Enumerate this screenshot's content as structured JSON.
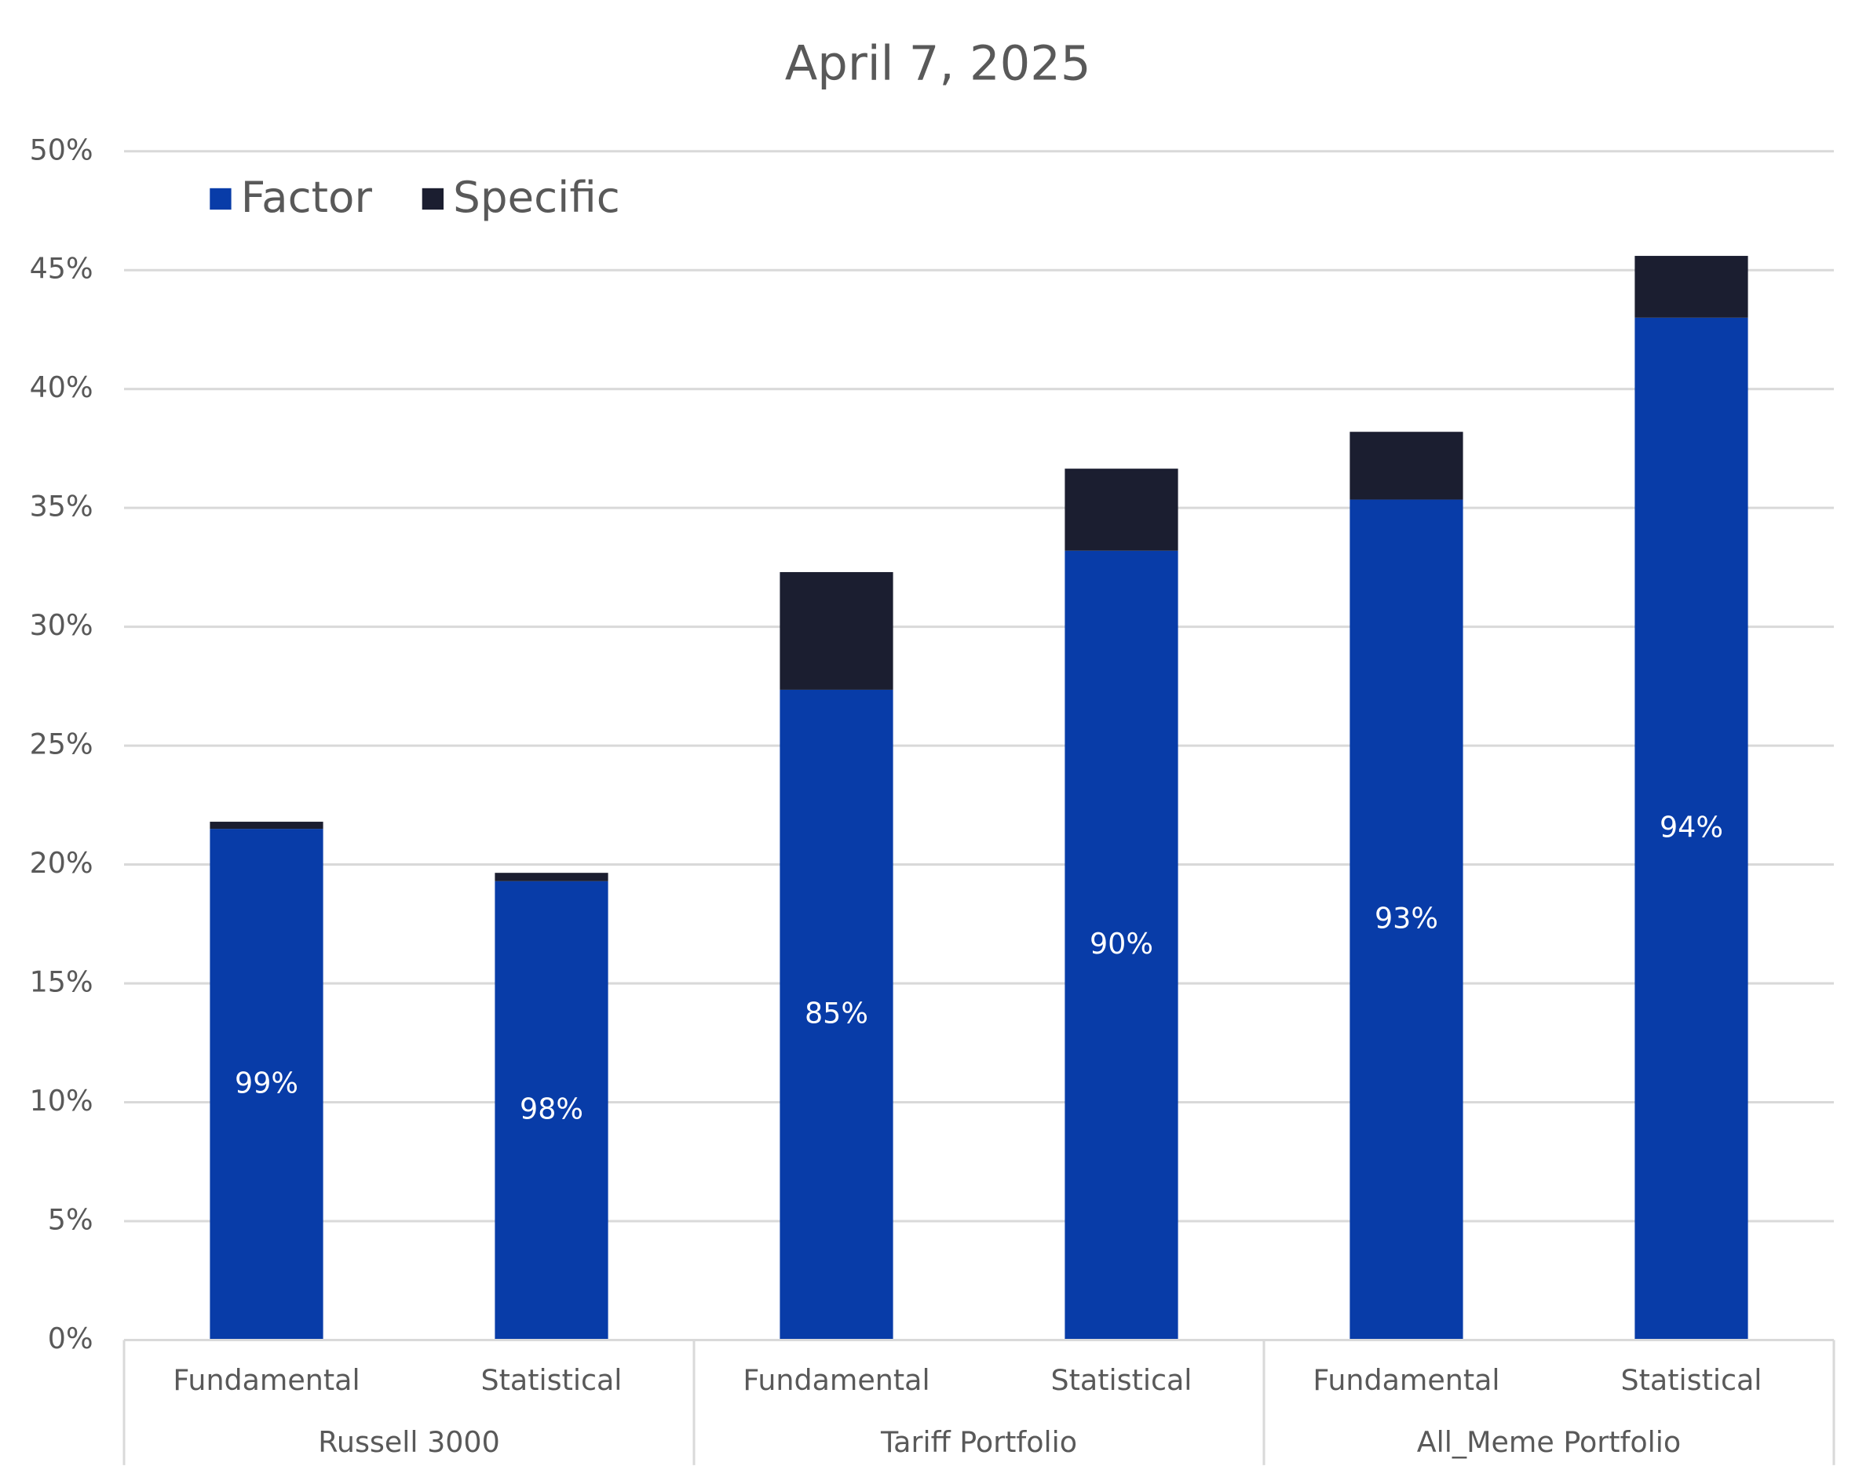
{
  "chart_data": {
    "type": "stacked_bar",
    "title": "April 7, 2025",
    "categories": [
      "Fundamental",
      "Statistical",
      "Fundamental",
      "Statistical",
      "Fundamental",
      "Statistical"
    ],
    "groups": [
      "Russell 3000",
      "Tariff Portfolio",
      "All_Meme Portfolio"
    ],
    "series": [
      {
        "name": "Factor",
        "color": "#083ca8",
        "values": [
          21.5,
          19.3,
          27.35,
          33.2,
          35.35,
          43.0
        ],
        "data_labels": [
          "99%",
          "98%",
          "85%",
          "90%",
          "93%",
          "94%"
        ]
      },
      {
        "name": "Specific",
        "color": "#1b1e30",
        "values": [
          0.3,
          0.35,
          4.95,
          3.45,
          2.85,
          2.6
        ]
      }
    ],
    "ylim": [
      0,
      50
    ],
    "yticks": [
      {
        "value": 0,
        "label": "0%"
      },
      {
        "value": 5,
        "label": "5%"
      },
      {
        "value": 10,
        "label": "10%"
      },
      {
        "value": 15,
        "label": "15%"
      },
      {
        "value": 20,
        "label": "20%"
      },
      {
        "value": 25,
        "label": "25%"
      },
      {
        "value": 30,
        "label": "30%"
      },
      {
        "value": 35,
        "label": "35%"
      },
      {
        "value": 40,
        "label": "40%"
      },
      {
        "value": 45,
        "label": "45%"
      },
      {
        "value": 50,
        "label": "50%"
      }
    ],
    "grid": true,
    "legend": "top-left"
  }
}
